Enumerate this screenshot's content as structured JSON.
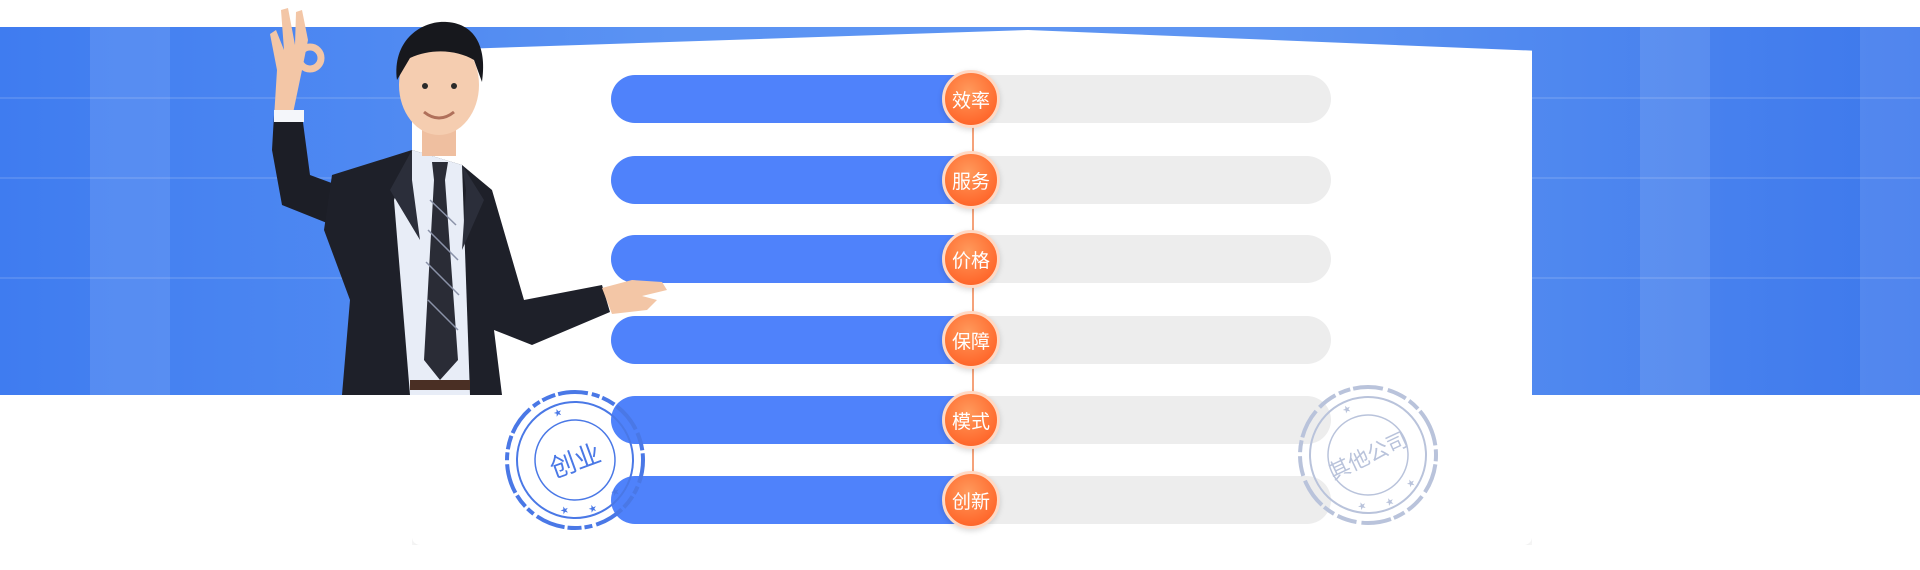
{
  "colors": {
    "band": "#4f88f2",
    "bar_fill": "#4f82fb",
    "bar_track": "#ededed",
    "badge": "#ff6a2e",
    "stamp_left": "#4a78e6",
    "stamp_right": "#b9c3db"
  },
  "comparison": {
    "rows": [
      {
        "label": "效率",
        "share": 0.5
      },
      {
        "label": "服务",
        "share": 0.5
      },
      {
        "label": "价格",
        "share": 0.5
      },
      {
        "label": "保障",
        "share": 0.5
      },
      {
        "label": "模式",
        "share": 0.5
      },
      {
        "label": "创新",
        "share": 0.5
      }
    ]
  },
  "stamps": {
    "left": {
      "text": "创业"
    },
    "right": {
      "text": "其他公司"
    }
  },
  "illustration": {
    "person": "businessman-ok-gesture"
  }
}
